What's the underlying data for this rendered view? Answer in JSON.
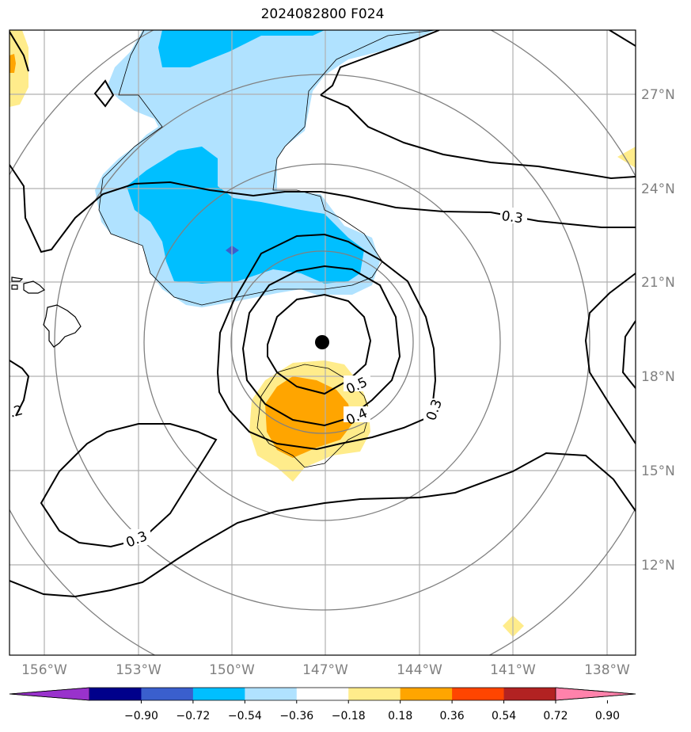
{
  "title": "2024082800 F024",
  "map": {
    "lat_labels": [
      "27°N",
      "24°N",
      "21°N",
      "18°N",
      "15°N",
      "12°N"
    ],
    "lon_labels": [
      "156°W",
      "153°W",
      "150°W",
      "147°W",
      "144°W",
      "141°W",
      "138°W"
    ],
    "contour_labels": [
      "0.3",
      "0.5",
      "0.4",
      "0.3",
      "0.3",
      ".2"
    ],
    "storm_center": {
      "lat": 19.0,
      "lon": "147°W"
    }
  },
  "colorbar": {
    "ticks": [
      "−0.90",
      "−0.72",
      "−0.54",
      "−0.36",
      "−0.18",
      "0.18",
      "0.36",
      "0.54",
      "0.72",
      "0.90"
    ],
    "colors": [
      "#9932cc",
      "#00008b",
      "#3a5fcd",
      "#00bfff",
      "#b0e2ff",
      "#ffffff",
      "#ffec8b",
      "#ffa500",
      "#ff4500",
      "#b22222",
      "#ff82ab"
    ]
  }
}
